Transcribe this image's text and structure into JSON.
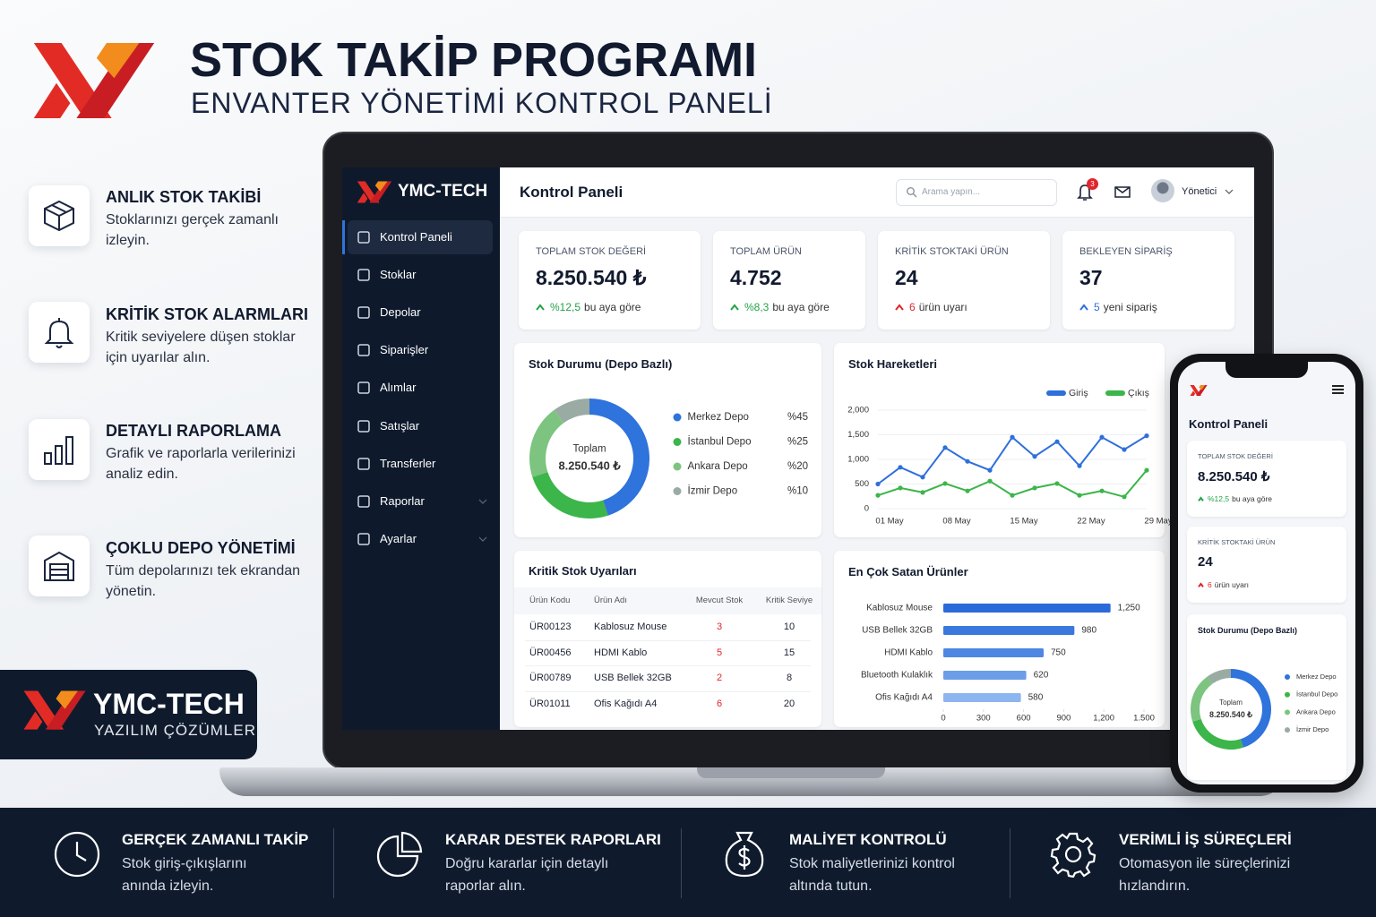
{
  "header": {
    "title": "STOK TAKİP PROGRAMI",
    "subtitle": "ENVANTER YÖNETİMİ KONTROL PANELİ"
  },
  "features": [
    {
      "title": "ANLIK STOK TAKİBİ",
      "lines": [
        "Stoklarınızı gerçek zamanlı",
        "izleyin."
      ]
    },
    {
      "title": "KRİTİK STOK ALARMLARI",
      "lines": [
        "Kritik seviyelere düşen stoklar",
        "için uyarılar alın."
      ]
    },
    {
      "title": "DETAYLI RAPORLAMA",
      "lines": [
        "Grafik ve raporlarla verilerinizi",
        "analiz edin."
      ]
    },
    {
      "title": "ÇOKLU DEPO YÖNETİMİ",
      "lines": [
        "Tüm depolarınızı tek ekrandan",
        "yönetin."
      ]
    }
  ],
  "brand": {
    "name": "YMC-TECH",
    "tagline": "YAZILIM ÇÖZÜMLERİ"
  },
  "benefits": [
    {
      "title": "GERÇEK ZAMANLI TAKİP",
      "lines": [
        "Stok giriş-çıkışlarını",
        "anında izleyin."
      ]
    },
    {
      "title": "KARAR DESTEK RAPORLARI",
      "lines": [
        "Doğru kararlar için detaylı",
        "raporlar alın."
      ]
    },
    {
      "title": "MALİYET KONTROLÜ",
      "lines": [
        "Stok maliyetlerinizi kontrol",
        "altında tutun."
      ]
    },
    {
      "title": "VERİMLİ İŞ SÜREÇLERİ",
      "lines": [
        "Otomasyon ile süreçlerinizi",
        "hızlandırın."
      ]
    }
  ],
  "app": {
    "brand": "YMC-TECH",
    "menu": [
      "Kontrol Paneli",
      "Stoklar",
      "Depolar",
      "Siparişler",
      "Alımlar",
      "Satışlar",
      "Transferler",
      "Raporlar",
      "Ayarlar"
    ],
    "page_title": "Kontrol Paneli",
    "search_placeholder": "Arama yapın...",
    "notifications": 3,
    "user": "Yönetici",
    "kpis": [
      {
        "label": "TOPLAM STOK DEĞERİ",
        "value": "8.250.540 ₺",
        "change": "%12,5",
        "note": "bu aya göre",
        "color": "#22a447"
      },
      {
        "label": "TOPLAM ÜRÜN",
        "value": "4.752",
        "change": "%8,3",
        "note": "bu aya göre",
        "color": "#22a447"
      },
      {
        "label": "KRİTİK STOKTAKİ ÜRÜN",
        "value": 24,
        "change": 6,
        "note": "ürün uyarı",
        "color": "#e0262b"
      },
      {
        "label": "BEKLEYEN SİPARİŞ",
        "value": 37,
        "change": 5,
        "note": "yeni sipariş",
        "color": "#2f6fdb"
      }
    ],
    "table": {
      "title": "Kritik Stok Uyarıları",
      "columns": [
        "Ürün Kodu",
        "Ürün Adı",
        "Mevcut Stok",
        "Kritik Seviye"
      ],
      "rows": [
        [
          "ÜR00123",
          "Kablosuz Mouse",
          3,
          10
        ],
        [
          "ÜR00456",
          "HDMI Kablo",
          5,
          15
        ],
        [
          "ÜR00789",
          "USB Bellek 32GB",
          2,
          8
        ],
        [
          "ÜR01011",
          "Ofis Kağıdı A4",
          6,
          20
        ]
      ]
    }
  },
  "chart_data": [
    {
      "type": "pie",
      "title": "Stok Durumu (Depo Bazlı)",
      "center_label": "Toplam",
      "center_value": "8.250.540 ₺",
      "categories": [
        "Merkez Depo",
        "İstanbul Depo",
        "Ankara Depo",
        "İzmir Depo"
      ],
      "values": [
        45,
        25,
        20,
        10
      ],
      "value_labels": [
        "%45",
        "%25",
        "%20",
        "%10"
      ],
      "colors": [
        "#2f73dc",
        "#3cb54a",
        "#7cc47f",
        "#9aaba3"
      ]
    },
    {
      "type": "line",
      "title": "Stok Hareketleri",
      "categories": [
        "01 May",
        null,
        null,
        "08 May",
        null,
        null,
        "15 May",
        null,
        null,
        "22 May",
        null,
        null,
        "29 May"
      ],
      "series": [
        {
          "name": "Giriş",
          "color": "#2f6fdb",
          "values": [
            500,
            840,
            640,
            1240,
            960,
            780,
            1450,
            1060,
            1360,
            870,
            1450,
            1200,
            1480
          ]
        },
        {
          "name": "Çıkış",
          "color": "#3cb54a",
          "values": [
            270,
            420,
            330,
            510,
            360,
            560,
            270,
            420,
            510,
            270,
            360,
            240,
            780
          ]
        }
      ],
      "ylim": [
        0,
        2000
      ],
      "yticks": [
        0,
        500,
        {
          "value": 1000,
          "label": "1,000"
        },
        {
          "value": 1500,
          "label": "1,500"
        },
        {
          "value": 2000,
          "label": "2,000"
        }
      ],
      "grid": true
    },
    {
      "type": "bar",
      "orientation": "horizontal",
      "title": "En Çok Satan Ürünler",
      "categories": [
        "Kablosuz Mouse",
        "USB Bellek 32GB",
        "HDMI Kablo",
        "Bluetooth Kulaklık",
        "Ofis Kağıdı A4"
      ],
      "values": [
        1250,
        980,
        750,
        620,
        580
      ],
      "value_labels": [
        "1,250",
        "980",
        "750",
        "620",
        "580"
      ],
      "colors": [
        "#2b6bd9",
        "#3a78de",
        "#4d87e3",
        "#6b9de9",
        "#8db5ef"
      ],
      "xlim": [
        0,
        1500
      ],
      "xticks": [
        0,
        300,
        600,
        900,
        {
          "value": 1200,
          "label": "1,200"
        },
        {
          "value": 1500,
          "label": "1.500"
        }
      ]
    }
  ]
}
